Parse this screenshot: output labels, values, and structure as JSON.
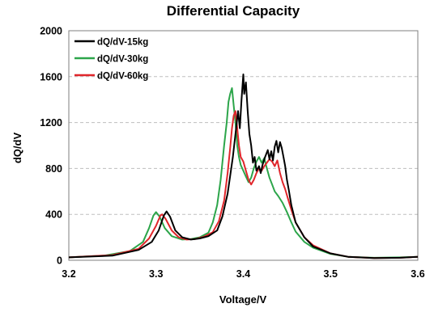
{
  "chart_data": {
    "type": "line",
    "title": "Differential Capacity",
    "xlabel": "Voltage/V",
    "ylabel": "dQ/dV",
    "xlim": [
      3.2,
      3.6
    ],
    "ylim": [
      0,
      2000
    ],
    "x_ticks": [
      "3.2",
      "3.3",
      "3.4",
      "3.5",
      "3.6"
    ],
    "y_ticks": [
      "0",
      "400",
      "800",
      "1200",
      "1600",
      "2000"
    ],
    "grid": "horizontal dashed",
    "legend_position": "top-left",
    "series": [
      {
        "name": "dQ/dV-15kg",
        "color": "#000000",
        "points": [
          [
            3.2,
            25
          ],
          [
            3.25,
            40
          ],
          [
            3.28,
            90
          ],
          [
            3.295,
            160
          ],
          [
            3.303,
            260
          ],
          [
            3.309,
            390
          ],
          [
            3.312,
            425
          ],
          [
            3.316,
            380
          ],
          [
            3.322,
            260
          ],
          [
            3.33,
            200
          ],
          [
            3.34,
            180
          ],
          [
            3.35,
            190
          ],
          [
            3.36,
            210
          ],
          [
            3.37,
            260
          ],
          [
            3.376,
            380
          ],
          [
            3.382,
            580
          ],
          [
            3.388,
            900
          ],
          [
            3.391,
            1100
          ],
          [
            3.394,
            1300
          ],
          [
            3.396,
            1150
          ],
          [
            3.398,
            1400
          ],
          [
            3.4,
            1620
          ],
          [
            3.401,
            1450
          ],
          [
            3.403,
            1550
          ],
          [
            3.405,
            1300
          ],
          [
            3.407,
            1100
          ],
          [
            3.409,
            1000
          ],
          [
            3.411,
            850
          ],
          [
            3.413,
            900
          ],
          [
            3.415,
            780
          ],
          [
            3.418,
            820
          ],
          [
            3.42,
            760
          ],
          [
            3.422,
            830
          ],
          [
            3.425,
            900
          ],
          [
            3.428,
            960
          ],
          [
            3.43,
            880
          ],
          [
            3.432,
            950
          ],
          [
            3.434,
            870
          ],
          [
            3.436,
            990
          ],
          [
            3.438,
            1040
          ],
          [
            3.44,
            940
          ],
          [
            3.442,
            1030
          ],
          [
            3.444,
            980
          ],
          [
            3.446,
            900
          ],
          [
            3.448,
            820
          ],
          [
            3.45,
            700
          ],
          [
            3.452,
            620
          ],
          [
            3.455,
            480
          ],
          [
            3.46,
            330
          ],
          [
            3.47,
            200
          ],
          [
            3.48,
            120
          ],
          [
            3.5,
            60
          ],
          [
            3.52,
            30
          ],
          [
            3.55,
            20
          ],
          [
            3.58,
            22
          ],
          [
            3.6,
            30
          ]
        ]
      },
      {
        "name": "dQ/dV-30kg",
        "color": "#2ca54a",
        "points": [
          [
            3.2,
            25
          ],
          [
            3.24,
            40
          ],
          [
            3.27,
            80
          ],
          [
            3.285,
            160
          ],
          [
            3.292,
            280
          ],
          [
            3.297,
            390
          ],
          [
            3.3,
            420
          ],
          [
            3.304,
            380
          ],
          [
            3.31,
            280
          ],
          [
            3.318,
            210
          ],
          [
            3.33,
            180
          ],
          [
            3.34,
            185
          ],
          [
            3.35,
            200
          ],
          [
            3.36,
            240
          ],
          [
            3.365,
            330
          ],
          [
            3.37,
            480
          ],
          [
            3.374,
            700
          ],
          [
            3.378,
            1000
          ],
          [
            3.381,
            1200
          ],
          [
            3.383,
            1380
          ],
          [
            3.385,
            1450
          ],
          [
            3.387,
            1500
          ],
          [
            3.389,
            1350
          ],
          [
            3.391,
            1200
          ],
          [
            3.393,
            1000
          ],
          [
            3.395,
            900
          ],
          [
            3.397,
            830
          ],
          [
            3.4,
            780
          ],
          [
            3.403,
            730
          ],
          [
            3.406,
            680
          ],
          [
            3.409,
            720
          ],
          [
            3.412,
            800
          ],
          [
            3.415,
            860
          ],
          [
            3.418,
            900
          ],
          [
            3.421,
            850
          ],
          [
            3.424,
            890
          ],
          [
            3.427,
            800
          ],
          [
            3.43,
            720
          ],
          [
            3.433,
            660
          ],
          [
            3.436,
            600
          ],
          [
            3.44,
            560
          ],
          [
            3.445,
            500
          ],
          [
            3.45,
            420
          ],
          [
            3.455,
            330
          ],
          [
            3.46,
            250
          ],
          [
            3.47,
            160
          ],
          [
            3.48,
            110
          ],
          [
            3.5,
            55
          ],
          [
            3.52,
            30
          ],
          [
            3.55,
            22
          ],
          [
            3.58,
            25
          ],
          [
            3.6,
            30
          ]
        ]
      },
      {
        "name": "dQ/dV-60kg",
        "color": "#e0262b",
        "points": [
          [
            3.2,
            25
          ],
          [
            3.25,
            45
          ],
          [
            3.28,
            100
          ],
          [
            3.292,
            190
          ],
          [
            3.3,
            300
          ],
          [
            3.305,
            390
          ],
          [
            3.307,
            400
          ],
          [
            3.311,
            360
          ],
          [
            3.318,
            260
          ],
          [
            3.326,
            200
          ],
          [
            3.335,
            180
          ],
          [
            3.345,
            185
          ],
          [
            3.355,
            205
          ],
          [
            3.365,
            245
          ],
          [
            3.372,
            340
          ],
          [
            3.378,
            520
          ],
          [
            3.382,
            760
          ],
          [
            3.385,
            980
          ],
          [
            3.387,
            1150
          ],
          [
            3.389,
            1260
          ],
          [
            3.391,
            1300
          ],
          [
            3.393,
            1150
          ],
          [
            3.395,
            1000
          ],
          [
            3.397,
            900
          ],
          [
            3.4,
            860
          ],
          [
            3.403,
            780
          ],
          [
            3.406,
            700
          ],
          [
            3.409,
            660
          ],
          [
            3.412,
            700
          ],
          [
            3.415,
            760
          ],
          [
            3.418,
            800
          ],
          [
            3.421,
            780
          ],
          [
            3.424,
            820
          ],
          [
            3.427,
            850
          ],
          [
            3.43,
            880
          ],
          [
            3.433,
            860
          ],
          [
            3.436,
            820
          ],
          [
            3.439,
            870
          ],
          [
            3.442,
            760
          ],
          [
            3.445,
            680
          ],
          [
            3.448,
            620
          ],
          [
            3.451,
            540
          ],
          [
            3.455,
            440
          ],
          [
            3.46,
            330
          ],
          [
            3.47,
            200
          ],
          [
            3.48,
            130
          ],
          [
            3.5,
            60
          ],
          [
            3.52,
            30
          ],
          [
            3.55,
            20
          ],
          [
            3.58,
            22
          ],
          [
            3.6,
            30
          ]
        ]
      }
    ]
  }
}
